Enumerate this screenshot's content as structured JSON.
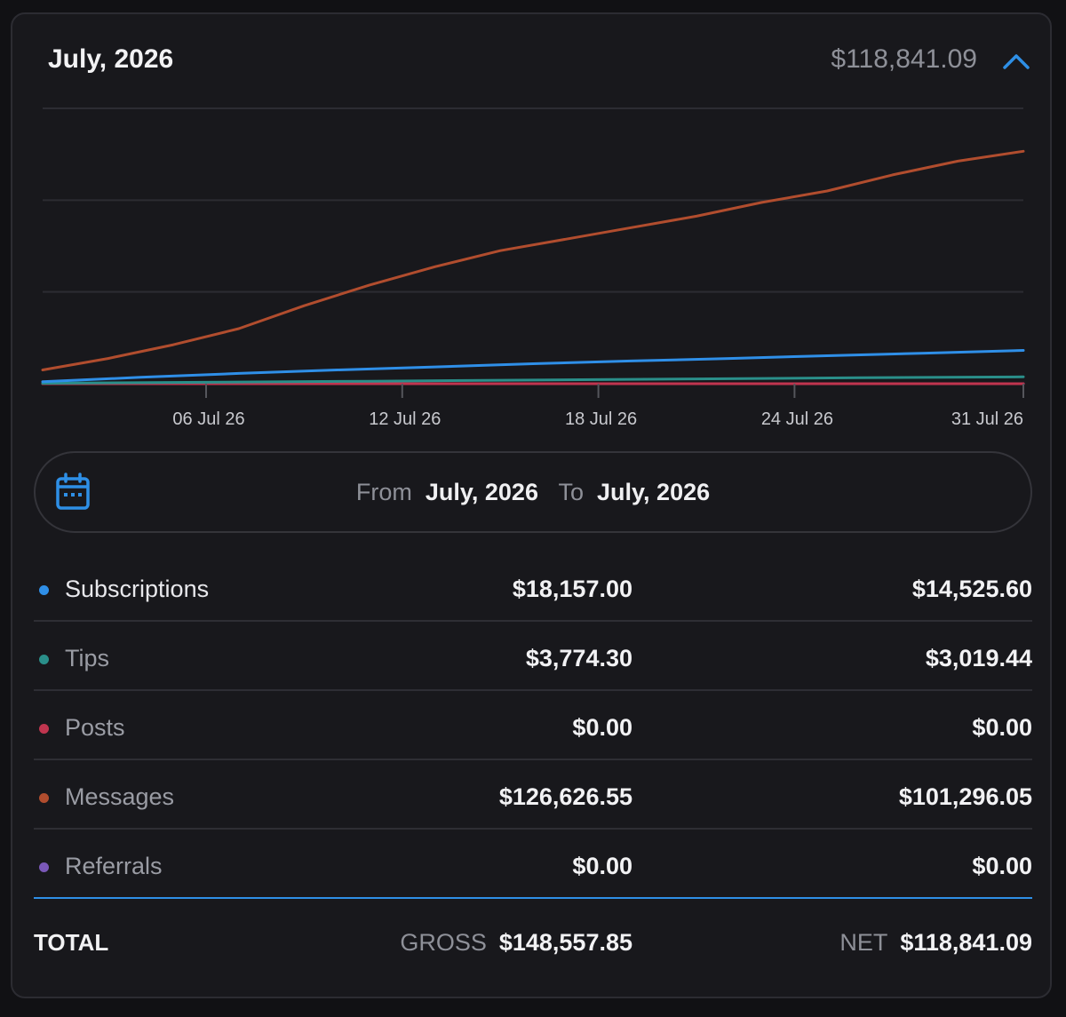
{
  "header": {
    "title": "July, 2026",
    "total": "$118,841.09"
  },
  "date_range": {
    "from_label": "From",
    "from_value": "July, 2026",
    "to_label": "To",
    "to_value": "July, 2026"
  },
  "colors": {
    "accent": "#2e8fe6",
    "subscriptions": "#2f8fe8",
    "tips": "#2a8f8a",
    "posts": "#c0354f",
    "messages": "#b14d2e",
    "referrals": "#7a58b8",
    "grid": "#2c2c32"
  },
  "rows": [
    {
      "name": "Subscriptions",
      "gross": "$18,157.00",
      "net": "$14,525.60",
      "color": "#2f8fe8",
      "label_color": "#e8e8ec"
    },
    {
      "name": "Tips",
      "gross": "$3,774.30",
      "net": "$3,019.44",
      "color": "#2a8f8a",
      "label_color": "#9a9ca4"
    },
    {
      "name": "Posts",
      "gross": "$0.00",
      "net": "$0.00",
      "color": "#c0354f",
      "label_color": "#9a9ca4"
    },
    {
      "name": "Messages",
      "gross": "$126,626.55",
      "net": "$101,296.05",
      "color": "#b14d2e",
      "label_color": "#9a9ca4"
    },
    {
      "name": "Referrals",
      "gross": "$0.00",
      "net": "$0.00",
      "color": "#7a58b8",
      "label_color": "#9a9ca4"
    }
  ],
  "total": {
    "label": "TOTAL",
    "gross_label": "GROSS",
    "gross": "$148,557.85",
    "net_label": "NET",
    "net": "$118,841.09"
  },
  "chart_data": {
    "type": "line",
    "xlim": [
      1,
      31
    ],
    "ylim": [
      0,
      120000
    ],
    "grid": true,
    "x_ticks": [
      {
        "day": 6,
        "label": "06 Jul 26"
      },
      {
        "day": 12,
        "label": "12 Jul 26"
      },
      {
        "day": 18,
        "label": "18 Jul 26"
      },
      {
        "day": 24,
        "label": "24 Jul 26"
      },
      {
        "day": 31,
        "label": "31 Jul 26"
      }
    ],
    "series": [
      {
        "name": "Messages",
        "color": "#b14d2e",
        "points": [
          [
            1,
            6000
          ],
          [
            3,
            11000
          ],
          [
            5,
            17000
          ],
          [
            7,
            24000
          ],
          [
            9,
            34000
          ],
          [
            11,
            43000
          ],
          [
            13,
            51000
          ],
          [
            15,
            58000
          ],
          [
            17,
            63000
          ],
          [
            19,
            68000
          ],
          [
            21,
            73000
          ],
          [
            23,
            79000
          ],
          [
            25,
            84000
          ],
          [
            27,
            91000
          ],
          [
            29,
            97000
          ],
          [
            31,
            101300
          ]
        ]
      },
      {
        "name": "Subscriptions",
        "color": "#2f8fe8",
        "points": [
          [
            1,
            900
          ],
          [
            4,
            2800
          ],
          [
            7,
            4500
          ],
          [
            10,
            6000
          ],
          [
            13,
            7300
          ],
          [
            16,
            8700
          ],
          [
            19,
            9900
          ],
          [
            22,
            11000
          ],
          [
            25,
            12200
          ],
          [
            28,
            13300
          ],
          [
            31,
            14500
          ]
        ]
      },
      {
        "name": "Tips",
        "color": "#2a8f8a",
        "points": [
          [
            1,
            200
          ],
          [
            6,
            600
          ],
          [
            11,
            1100
          ],
          [
            16,
            1600
          ],
          [
            21,
            2100
          ],
          [
            26,
            2600
          ],
          [
            31,
            3000
          ]
        ]
      },
      {
        "name": "Posts",
        "color": "#c0354f",
        "points": [
          [
            1,
            0
          ],
          [
            31,
            0
          ]
        ]
      },
      {
        "name": "Referrals",
        "color": "#7a58b8",
        "points": [
          [
            1,
            0
          ],
          [
            31,
            0
          ]
        ]
      }
    ]
  }
}
